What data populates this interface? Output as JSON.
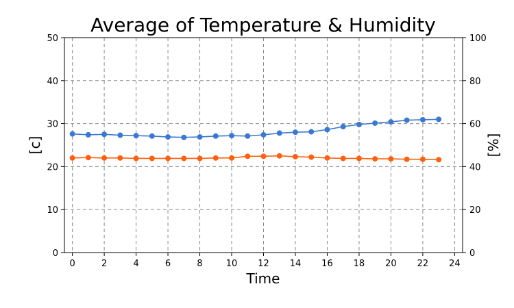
{
  "chart_data": {
    "type": "line",
    "title": "Average of Temperature & Humidity",
    "xlabel": "Time",
    "ylabel_left": "[c]",
    "ylabel_right": "[%]",
    "xlim": [
      -0.5,
      24.5
    ],
    "ylim_left": [
      0,
      50
    ],
    "ylim_right": [
      0,
      100
    ],
    "x_ticks": [
      0,
      2,
      4,
      6,
      8,
      10,
      12,
      14,
      16,
      18,
      20,
      22,
      24
    ],
    "y_ticks_left": [
      0,
      10,
      20,
      30,
      40,
      50
    ],
    "y_ticks_right": [
      0,
      20,
      40,
      60,
      80,
      100
    ],
    "grid": true,
    "x": [
      0,
      1,
      2,
      3,
      4,
      5,
      6,
      7,
      8,
      9,
      10,
      11,
      12,
      13,
      14,
      15,
      16,
      17,
      18,
      19,
      20,
      21,
      22,
      23
    ],
    "series": [
      {
        "axis": "left",
        "color": "#3a78d4",
        "values": [
          27.6,
          27.4,
          27.5,
          27.3,
          27.2,
          27.1,
          26.9,
          26.8,
          26.9,
          27.1,
          27.2,
          27.1,
          27.4,
          27.8,
          28.0,
          28.1,
          28.6,
          29.3,
          29.8,
          30.1,
          30.4,
          30.8,
          30.9,
          31.0
        ]
      },
      {
        "axis": "left",
        "color": "#ff6010",
        "values": [
          22.0,
          22.1,
          22.0,
          22.0,
          21.9,
          21.9,
          21.9,
          21.9,
          21.9,
          22.0,
          22.0,
          22.4,
          22.4,
          22.5,
          22.3,
          22.2,
          22.0,
          21.9,
          21.9,
          21.8,
          21.8,
          21.7,
          21.7,
          21.6
        ]
      }
    ]
  }
}
